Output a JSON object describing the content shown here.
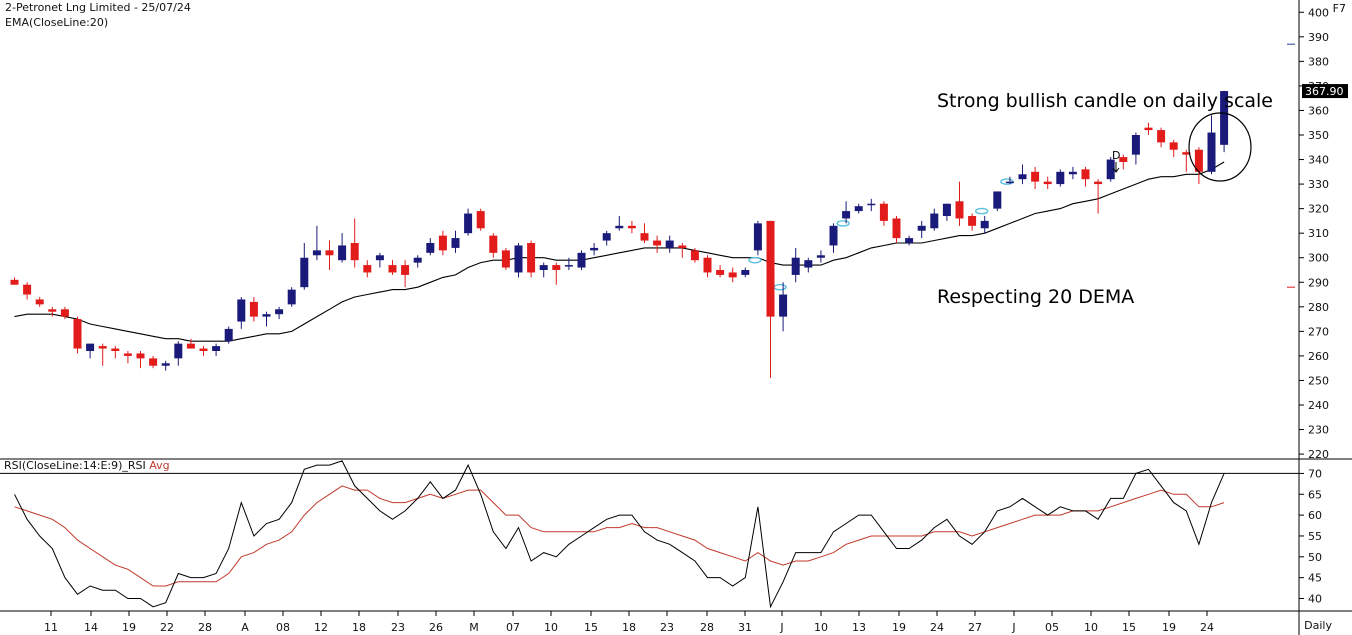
{
  "header": {
    "title": "2-Petronet Lng Limited - 25/07/24",
    "indicator": "EMA(CloseLine:20)",
    "function_key": "F7"
  },
  "rsi_panel": {
    "label": "RSI(CloseLine:14:E:9)_RSI",
    "avg_label": "Avg"
  },
  "footer": {
    "period": "Daily"
  },
  "colors": {
    "up": "#1a1a7a",
    "down": "#e21b1b",
    "ema": "#000000",
    "rsi": "#000000",
    "rsi_avg": "#c0392b",
    "marker": "#5bc0de"
  },
  "annotations": {
    "bullish": "Strong bullish candle on daily scale",
    "support": "Respecting 20 DEMA",
    "signal": "D"
  },
  "chart_data": {
    "type": "candlestick",
    "price_axis": {
      "ticks": [
        400,
        390,
        380,
        370,
        360,
        350,
        340,
        330,
        320,
        310,
        300,
        290,
        280,
        270,
        260,
        250,
        240,
        230,
        220
      ],
      "range": [
        218,
        405
      ],
      "last_price": "367.90",
      "last_value": 367.9
    },
    "rsi_axis": {
      "ticks": [
        70,
        65,
        60,
        55,
        50,
        45,
        40
      ],
      "range": [
        37,
        72.5
      ],
      "overbought": 70
    },
    "x_labels": [
      "11",
      "14",
      "19",
      "22",
      "28",
      "A",
      "08",
      "12",
      "18",
      "23",
      "26",
      "M",
      "07",
      "10",
      "15",
      "18",
      "23",
      "28",
      "31",
      "J",
      "10",
      "13",
      "19",
      "24",
      "27",
      "J",
      "05",
      "10",
      "15",
      "19",
      "24"
    ],
    "candles": [
      {
        "o": 291,
        "h": 292,
        "l": 289,
        "c": 289
      },
      {
        "o": 289,
        "h": 290,
        "l": 283,
        "c": 285
      },
      {
        "o": 283,
        "h": 284,
        "l": 280,
        "c": 281
      },
      {
        "o": 279,
        "h": 280,
        "l": 276,
        "c": 278
      },
      {
        "o": 279,
        "h": 280,
        "l": 275,
        "c": 276
      },
      {
        "o": 275,
        "h": 276,
        "l": 261,
        "c": 263
      },
      {
        "o": 262,
        "h": 265,
        "l": 259,
        "c": 265
      },
      {
        "o": 264,
        "h": 265,
        "l": 256,
        "c": 263
      },
      {
        "o": 263,
        "h": 264,
        "l": 259,
        "c": 262
      },
      {
        "o": 261,
        "h": 262,
        "l": 257,
        "c": 260
      },
      {
        "o": 261,
        "h": 262,
        "l": 255,
        "c": 259
      },
      {
        "o": 259,
        "h": 260,
        "l": 255,
        "c": 256
      },
      {
        "o": 256,
        "h": 258,
        "l": 254,
        "c": 257
      },
      {
        "o": 259,
        "h": 266,
        "l": 256,
        "c": 265
      },
      {
        "o": 265,
        "h": 267,
        "l": 263,
        "c": 263
      },
      {
        "o": 263,
        "h": 264,
        "l": 260,
        "c": 262
      },
      {
        "o": 262,
        "h": 265,
        "l": 260,
        "c": 264
      },
      {
        "o": 266,
        "h": 272,
        "l": 265,
        "c": 271
      },
      {
        "o": 274,
        "h": 284,
        "l": 271,
        "c": 283
      },
      {
        "o": 282,
        "h": 284,
        "l": 274,
        "c": 276
      },
      {
        "o": 276,
        "h": 278,
        "l": 272,
        "c": 277
      },
      {
        "o": 277,
        "h": 280,
        "l": 275,
        "c": 279
      },
      {
        "o": 281,
        "h": 288,
        "l": 280,
        "c": 287
      },
      {
        "o": 288,
        "h": 306,
        "l": 287,
        "c": 300
      },
      {
        "o": 301,
        "h": 313,
        "l": 299,
        "c": 303
      },
      {
        "o": 303,
        "h": 307,
        "l": 295,
        "c": 301
      },
      {
        "o": 299,
        "h": 310,
        "l": 298,
        "c": 305
      },
      {
        "o": 306,
        "h": 316,
        "l": 296,
        "c": 299
      },
      {
        "o": 297,
        "h": 299,
        "l": 292,
        "c": 294
      },
      {
        "o": 299,
        "h": 302,
        "l": 296,
        "c": 301
      },
      {
        "o": 297,
        "h": 299,
        "l": 293,
        "c": 294
      },
      {
        "o": 297,
        "h": 299,
        "l": 288,
        "c": 293
      },
      {
        "o": 298,
        "h": 301,
        "l": 296,
        "c": 300
      },
      {
        "o": 302,
        "h": 308,
        "l": 301,
        "c": 306
      },
      {
        "o": 309,
        "h": 311,
        "l": 301,
        "c": 303
      },
      {
        "o": 304,
        "h": 311,
        "l": 302,
        "c": 308
      },
      {
        "o": 310,
        "h": 320,
        "l": 309,
        "c": 318
      },
      {
        "o": 319,
        "h": 320,
        "l": 311,
        "c": 312
      },
      {
        "o": 309,
        "h": 310,
        "l": 300,
        "c": 302
      },
      {
        "o": 303,
        "h": 304,
        "l": 295,
        "c": 296
      },
      {
        "o": 294,
        "h": 306,
        "l": 292,
        "c": 305
      },
      {
        "o": 306,
        "h": 307,
        "l": 292,
        "c": 294
      },
      {
        "o": 295,
        "h": 298,
        "l": 292,
        "c": 297
      },
      {
        "o": 297,
        "h": 298,
        "l": 289,
        "c": 295
      },
      {
        "o": 297,
        "h": 300,
        "l": 295,
        "c": 297
      },
      {
        "o": 296,
        "h": 303,
        "l": 295,
        "c": 302
      },
      {
        "o": 303,
        "h": 306,
        "l": 301,
        "c": 304
      },
      {
        "o": 307,
        "h": 311,
        "l": 305,
        "c": 310
      },
      {
        "o": 312,
        "h": 317,
        "l": 311,
        "c": 313
      },
      {
        "o": 313,
        "h": 315,
        "l": 310,
        "c": 312
      },
      {
        "o": 310,
        "h": 314,
        "l": 306,
        "c": 307
      },
      {
        "o": 307,
        "h": 309,
        "l": 302,
        "c": 305
      },
      {
        "o": 304,
        "h": 309,
        "l": 302,
        "c": 307
      },
      {
        "o": 305,
        "h": 306,
        "l": 300,
        "c": 304
      },
      {
        "o": 303,
        "h": 304,
        "l": 298,
        "c": 299
      },
      {
        "o": 300,
        "h": 301,
        "l": 292,
        "c": 294
      },
      {
        "o": 295,
        "h": 297,
        "l": 292,
        "c": 293
      },
      {
        "o": 294,
        "h": 296,
        "l": 290,
        "c": 292
      },
      {
        "o": 293,
        "h": 296,
        "l": 292,
        "c": 295
      },
      {
        "o": 303,
        "h": 315,
        "l": 301,
        "c": 314
      },
      {
        "o": 315,
        "h": 315,
        "l": 251,
        "c": 276
      },
      {
        "o": 276,
        "h": 290,
        "l": 270,
        "c": 285
      },
      {
        "o": 293,
        "h": 304,
        "l": 290,
        "c": 300
      },
      {
        "o": 296,
        "h": 300,
        "l": 294,
        "c": 299
      },
      {
        "o": 300,
        "h": 303,
        "l": 298,
        "c": 301
      },
      {
        "o": 305,
        "h": 314,
        "l": 302,
        "c": 313
      },
      {
        "o": 316,
        "h": 323,
        "l": 314,
        "c": 319
      },
      {
        "o": 319,
        "h": 322,
        "l": 318,
        "c": 321
      },
      {
        "o": 322,
        "h": 324,
        "l": 319,
        "c": 322
      },
      {
        "o": 322,
        "h": 323,
        "l": 313,
        "c": 315
      },
      {
        "o": 316,
        "h": 317,
        "l": 306,
        "c": 308
      },
      {
        "o": 306,
        "h": 309,
        "l": 305,
        "c": 308
      },
      {
        "o": 311,
        "h": 315,
        "l": 308,
        "c": 313
      },
      {
        "o": 312,
        "h": 320,
        "l": 311,
        "c": 318
      },
      {
        "o": 317,
        "h": 322,
        "l": 315,
        "c": 322
      },
      {
        "o": 323,
        "h": 331,
        "l": 313,
        "c": 316
      },
      {
        "o": 317,
        "h": 318,
        "l": 311,
        "c": 313
      },
      {
        "o": 312,
        "h": 317,
        "l": 310,
        "c": 315
      },
      {
        "o": 320,
        "h": 327,
        "l": 319,
        "c": 327
      },
      {
        "o": 331,
        "h": 333,
        "l": 330,
        "c": 331
      },
      {
        "o": 332,
        "h": 338,
        "l": 330,
        "c": 334
      },
      {
        "o": 335,
        "h": 337,
        "l": 328,
        "c": 331
      },
      {
        "o": 331,
        "h": 333,
        "l": 328,
        "c": 330
      },
      {
        "o": 330,
        "h": 336,
        "l": 329,
        "c": 335
      },
      {
        "o": 334,
        "h": 337,
        "l": 332,
        "c": 335
      },
      {
        "o": 336,
        "h": 337,
        "l": 329,
        "c": 332
      },
      {
        "o": 331,
        "h": 332,
        "l": 318,
        "c": 330
      },
      {
        "o": 332,
        "h": 341,
        "l": 331,
        "c": 340
      },
      {
        "o": 341,
        "h": 342,
        "l": 336,
        "c": 339
      },
      {
        "o": 342,
        "h": 351,
        "l": 338,
        "c": 350
      },
      {
        "o": 353,
        "h": 355,
        "l": 350,
        "c": 352
      },
      {
        "o": 352,
        "h": 353,
        "l": 345,
        "c": 347
      },
      {
        "o": 347,
        "h": 348,
        "l": 341,
        "c": 344
      },
      {
        "o": 343,
        "h": 344,
        "l": 335,
        "c": 342
      },
      {
        "o": 344,
        "h": 345,
        "l": 330,
        "c": 335
      },
      {
        "o": 335,
        "h": 358,
        "l": 334,
        "c": 351
      },
      {
        "o": 346,
        "h": 368,
        "l": 343,
        "c": 367.9
      }
    ],
    "ema20": [
      276,
      277,
      277,
      277,
      276,
      275,
      273,
      272,
      271,
      270,
      269,
      268,
      267,
      267,
      266,
      266,
      266,
      266,
      267,
      268,
      269,
      269,
      270,
      273,
      276,
      279,
      282,
      284,
      285,
      286,
      287,
      287,
      288,
      290,
      292,
      293,
      296,
      298,
      299,
      299,
      300,
      300,
      300,
      299,
      299,
      299,
      300,
      301,
      302,
      303,
      304,
      304,
      304,
      304,
      303,
      302,
      301,
      300,
      300,
      300,
      298,
      297,
      297,
      297,
      297,
      299,
      300,
      302,
      304,
      305,
      306,
      306,
      306,
      307,
      308,
      309,
      309,
      310,
      312,
      314,
      316,
      318,
      319,
      320,
      322,
      323,
      324,
      326,
      328,
      330,
      332,
      333,
      333,
      334,
      334,
      336,
      339
    ],
    "rsi": [
      65,
      59,
      55,
      52,
      45,
      41,
      43,
      42,
      42,
      40,
      40,
      38,
      39,
      46,
      45,
      45,
      46,
      52,
      63,
      55,
      58,
      59,
      63,
      71,
      72,
      72,
      73,
      67,
      64,
      61,
      59,
      61,
      64,
      68,
      64,
      66,
      72,
      65,
      56,
      52,
      57,
      49,
      51,
      50,
      53,
      55,
      57,
      59,
      60,
      60,
      56,
      54,
      53,
      51,
      49,
      45,
      45,
      43,
      45,
      62,
      38,
      44,
      51,
      51,
      51,
      56,
      58,
      60,
      60,
      56,
      52,
      52,
      54,
      57,
      59,
      55,
      53,
      56,
      61,
      62,
      64,
      62,
      60,
      62,
      61,
      61,
      59,
      64,
      64,
      70,
      71,
      67,
      63,
      61,
      53,
      63,
      70
    ],
    "rsi_avg": [
      62,
      61,
      60,
      59,
      57,
      54,
      52,
      50,
      48,
      47,
      45,
      43,
      43,
      44,
      44,
      44,
      44,
      46,
      50,
      51,
      53,
      54,
      56,
      60,
      63,
      65,
      67,
      66,
      66,
      64,
      63,
      63,
      64,
      65,
      64,
      65,
      66,
      66,
      63,
      60,
      60,
      57,
      56,
      56,
      56,
      56,
      56,
      57,
      57,
      58,
      57,
      57,
      56,
      55,
      54,
      52,
      51,
      50,
      49,
      51,
      49,
      48,
      49,
      49,
      50,
      51,
      53,
      54,
      55,
      55,
      55,
      55,
      55,
      56,
      56,
      56,
      55,
      56,
      57,
      58,
      59,
      60,
      60,
      60,
      61,
      61,
      61,
      62,
      63,
      64,
      65,
      66,
      65,
      65,
      62,
      62,
      63
    ]
  }
}
